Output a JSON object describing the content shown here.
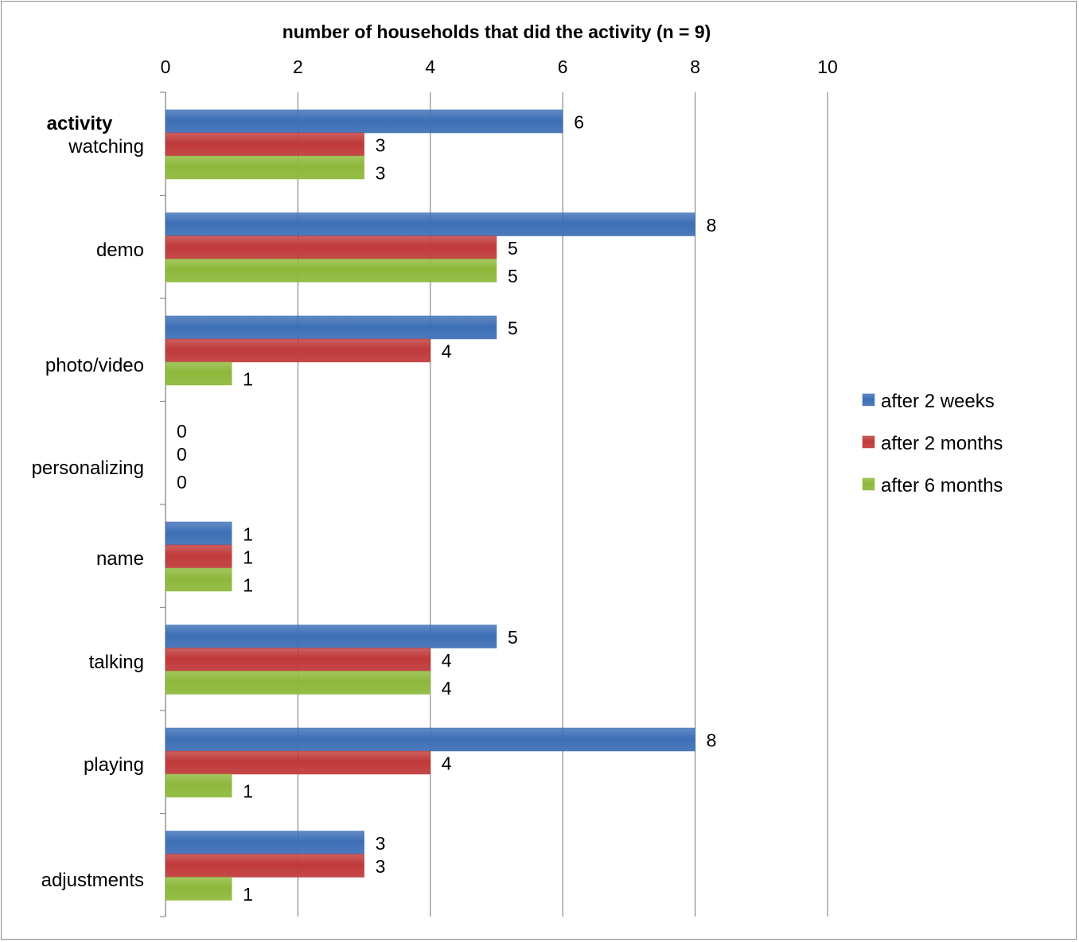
{
  "chart_data": {
    "type": "bar",
    "orientation": "horizontal",
    "title": "number of households that did the activity (n = 9)",
    "ylabel": "activity",
    "categories": [
      "watching",
      "demo",
      "photo/video",
      "personalizing",
      "name",
      "talking",
      "playing",
      "adjustments"
    ],
    "series": [
      {
        "name": "after 2 weeks",
        "color": "#3d6fb6",
        "values": [
          6,
          8,
          5,
          0,
          1,
          5,
          8,
          3
        ]
      },
      {
        "name": "after 2 months",
        "color": "#c0393a",
        "values": [
          3,
          5,
          4,
          0,
          1,
          4,
          4,
          3
        ]
      },
      {
        "name": "after 6 months",
        "color": "#8db83a",
        "values": [
          3,
          5,
          1,
          0,
          1,
          4,
          1,
          1
        ]
      }
    ],
    "xlim": [
      0,
      10
    ],
    "xticks": [
      "0",
      "2",
      "4",
      "6",
      "8",
      "10"
    ],
    "axis_position": "top",
    "grid": true,
    "legend_position": "right",
    "data_labels": true
  }
}
